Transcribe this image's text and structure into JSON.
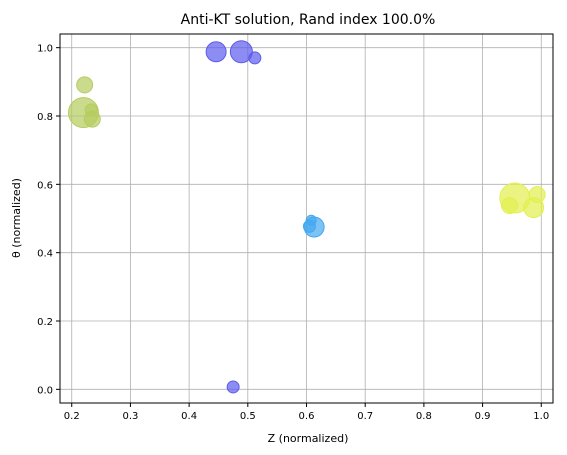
{
  "chart_data": {
    "type": "scatter",
    "title": "Anti-KT solution, Rand index 100.0%",
    "xlabel": "Z (normalized)",
    "ylabel": "θ (normalized)",
    "xlim": [
      0.18,
      1.02
    ],
    "ylim": [
      -0.04,
      1.04
    ],
    "xticks": [
      "0.2",
      "0.3",
      "0.4",
      "0.5",
      "0.6",
      "0.7",
      "0.8",
      "0.9",
      "1.0"
    ],
    "yticks": [
      "0.0",
      "0.2",
      "0.4",
      "0.6",
      "0.8",
      "1.0"
    ],
    "grid": true,
    "series": [
      {
        "color": "#b5cc5e",
        "points": [
          {
            "x": 0.222,
            "y": 0.891,
            "size": 8
          },
          {
            "x": 0.22,
            "y": 0.81,
            "size": 15
          },
          {
            "x": 0.233,
            "y": 0.818,
            "size": 6
          },
          {
            "x": 0.235,
            "y": 0.791,
            "size": 8
          }
        ]
      },
      {
        "color": "#5b5bec",
        "points": [
          {
            "x": 0.446,
            "y": 0.988,
            "size": 10
          },
          {
            "x": 0.489,
            "y": 0.988,
            "size": 11
          },
          {
            "x": 0.512,
            "y": 0.97,
            "size": 6
          },
          {
            "x": 0.475,
            "y": 0.007,
            "size": 6
          }
        ]
      },
      {
        "color": "#45a8f0",
        "points": [
          {
            "x": 0.608,
            "y": 0.495,
            "size": 5
          },
          {
            "x": 0.605,
            "y": 0.477,
            "size": 6
          },
          {
            "x": 0.613,
            "y": 0.475,
            "size": 10
          }
        ]
      },
      {
        "color": "#e2f04f",
        "points": [
          {
            "x": 0.955,
            "y": 0.56,
            "size": 15
          },
          {
            "x": 0.993,
            "y": 0.57,
            "size": 8
          },
          {
            "x": 0.946,
            "y": 0.538,
            "size": 8
          },
          {
            "x": 0.987,
            "y": 0.532,
            "size": 10
          }
        ]
      }
    ]
  }
}
